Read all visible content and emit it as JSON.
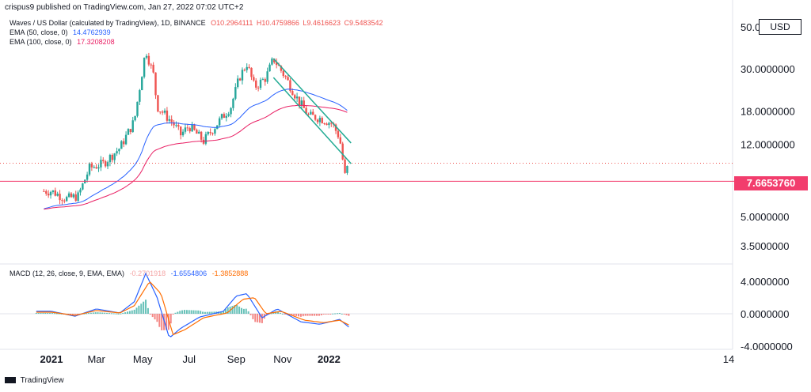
{
  "header": {
    "publisher": "crispus9 published on TradingView.com, Jan 27, 2022 07:02 UTC+2"
  },
  "legend": {
    "symbol": "Waves / US Dollar (calculated by TradingView), 1D, BINANCE",
    "ohlc": {
      "o": "O10.2964111",
      "h": "H10.4759866",
      "l": "L9.4616623",
      "c": "C9.5483542"
    },
    "ema50": {
      "label": "EMA (50, close, 0)",
      "value": "14.4762939"
    },
    "ema100": {
      "label": "EMA (100, close, 0)",
      "value": "17.3208208"
    },
    "macd": {
      "label": "MACD (12, 26, close, 9, EMA, EMA)",
      "hist": "-0.2701918",
      "macd": "-1.6554806",
      "signal": "-1.3852888"
    }
  },
  "currency_badge": "USD",
  "last_price_tag": "7.6653760",
  "brand": "TradingView",
  "colors": {
    "up": "#26a69a",
    "down": "#ef5350",
    "ema50": "#2962ff",
    "ema100": "#e91e63",
    "macd": "#2962ff",
    "signal": "#ff6d00",
    "channel": "#22ab94",
    "support": "#f23d6d"
  },
  "chart_data": [
    {
      "type": "candlestick",
      "title": "Waves / US Dollar (calculated by TradingView), 1D, BINANCE",
      "y_scale": "log",
      "price_ticks": [
        "50.0000000",
        "30.0000000",
        "18.0000000",
        "12.0000000",
        "7.6653760",
        "5.0000000",
        "3.5000000"
      ],
      "x_ticks": [
        "2021",
        "Mar",
        "May",
        "Jul",
        "Sep",
        "Nov",
        "2022",
        "14"
      ],
      "support_level": 7.665376,
      "keypoints_close": [
        {
          "date": "2021-01-01",
          "close": 6.8
        },
        {
          "date": "2021-01-20",
          "close": 6.2
        },
        {
          "date": "2021-02-05",
          "close": 6.4
        },
        {
          "date": "2021-02-20",
          "close": 9.0
        },
        {
          "date": "2021-03-10",
          "close": 9.5
        },
        {
          "date": "2021-04-01",
          "close": 11.5
        },
        {
          "date": "2021-04-20",
          "close": 16.0
        },
        {
          "date": "2021-05-05",
          "close": 38.0
        },
        {
          "date": "2021-05-15",
          "close": 28.0
        },
        {
          "date": "2021-05-20",
          "close": 19.0
        },
        {
          "date": "2021-06-10",
          "close": 15.5
        },
        {
          "date": "2021-06-20",
          "close": 13.5
        },
        {
          "date": "2021-07-01",
          "close": 15.0
        },
        {
          "date": "2021-07-20",
          "close": 12.5
        },
        {
          "date": "2021-08-10",
          "close": 16.0
        },
        {
          "date": "2021-08-25",
          "close": 19.0
        },
        {
          "date": "2021-09-05",
          "close": 27.0
        },
        {
          "date": "2021-09-15",
          "close": 32.0
        },
        {
          "date": "2021-09-25",
          "close": 24.0
        },
        {
          "date": "2021-10-10",
          "close": 27.0
        },
        {
          "date": "2021-10-20",
          "close": 34.0
        },
        {
          "date": "2021-11-05",
          "close": 27.0
        },
        {
          "date": "2021-11-20",
          "close": 21.0
        },
        {
          "date": "2021-12-05",
          "close": 17.0
        },
        {
          "date": "2021-12-20",
          "close": 16.5
        },
        {
          "date": "2022-01-05",
          "close": 15.5
        },
        {
          "date": "2022-01-15",
          "close": 13.0
        },
        {
          "date": "2022-01-22",
          "close": 8.2
        },
        {
          "date": "2022-01-27",
          "close": 9.55
        }
      ],
      "ema50_value": 14.4762939,
      "ema100_value": 17.3208208,
      "channel": {
        "upper": [
          {
            "date": "2021-10-20",
            "price": 34.0
          },
          {
            "date": "2022-01-30",
            "price": 12.2
          }
        ],
        "lower": [
          {
            "date": "2021-10-20",
            "price": 27.0
          },
          {
            "date": "2022-01-30",
            "price": 9.5
          }
        ]
      }
    },
    {
      "type": "line",
      "title": "MACD (12, 26, close, 9, EMA, EMA)",
      "y_ticks": [
        "4.0000000",
        "0.0000000",
        "-4.0000000"
      ],
      "series": [
        {
          "name": "MACD",
          "keypoints": [
            {
              "date": "2021-01-01",
              "value": 0.3
            },
            {
              "date": "2021-02-01",
              "value": -0.3
            },
            {
              "date": "2021-03-01",
              "value": 0.6
            },
            {
              "date": "2021-04-01",
              "value": 0.1
            },
            {
              "date": "2021-04-20",
              "value": 1.5
            },
            {
              "date": "2021-05-05",
              "value": 5.0
            },
            {
              "date": "2021-05-20",
              "value": 2.0
            },
            {
              "date": "2021-06-05",
              "value": -3.0
            },
            {
              "date": "2021-06-20",
              "value": -1.8
            },
            {
              "date": "2021-07-15",
              "value": -0.4
            },
            {
              "date": "2021-08-15",
              "value": 0.3
            },
            {
              "date": "2021-09-01",
              "value": 2.2
            },
            {
              "date": "2021-09-15",
              "value": 2.5
            },
            {
              "date": "2021-10-05",
              "value": -0.5
            },
            {
              "date": "2021-10-25",
              "value": 0.6
            },
            {
              "date": "2021-11-25",
              "value": -1.0
            },
            {
              "date": "2021-12-20",
              "value": -1.3
            },
            {
              "date": "2022-01-15",
              "value": -0.7
            },
            {
              "date": "2022-01-27",
              "value": -1.65
            }
          ]
        },
        {
          "name": "Signal",
          "keypoints": [
            {
              "date": "2021-01-01",
              "value": 0.2
            },
            {
              "date": "2021-02-01",
              "value": -0.2
            },
            {
              "date": "2021-03-01",
              "value": 0.4
            },
            {
              "date": "2021-04-01",
              "value": 0.1
            },
            {
              "date": "2021-04-20",
              "value": 1.0
            },
            {
              "date": "2021-05-10",
              "value": 4.0
            },
            {
              "date": "2021-05-25",
              "value": 2.5
            },
            {
              "date": "2021-06-10",
              "value": -2.6
            },
            {
              "date": "2021-06-25",
              "value": -2.0
            },
            {
              "date": "2021-07-20",
              "value": -0.5
            },
            {
              "date": "2021-08-20",
              "value": 0.1
            },
            {
              "date": "2021-09-10",
              "value": 1.8
            },
            {
              "date": "2021-09-25",
              "value": 2.0
            },
            {
              "date": "2021-10-10",
              "value": 0.0
            },
            {
              "date": "2021-10-30",
              "value": 0.3
            },
            {
              "date": "2021-11-30",
              "value": -0.8
            },
            {
              "date": "2021-12-25",
              "value": -1.1
            },
            {
              "date": "2022-01-15",
              "value": -0.8
            },
            {
              "date": "2022-01-27",
              "value": -1.39
            }
          ]
        }
      ]
    }
  ]
}
